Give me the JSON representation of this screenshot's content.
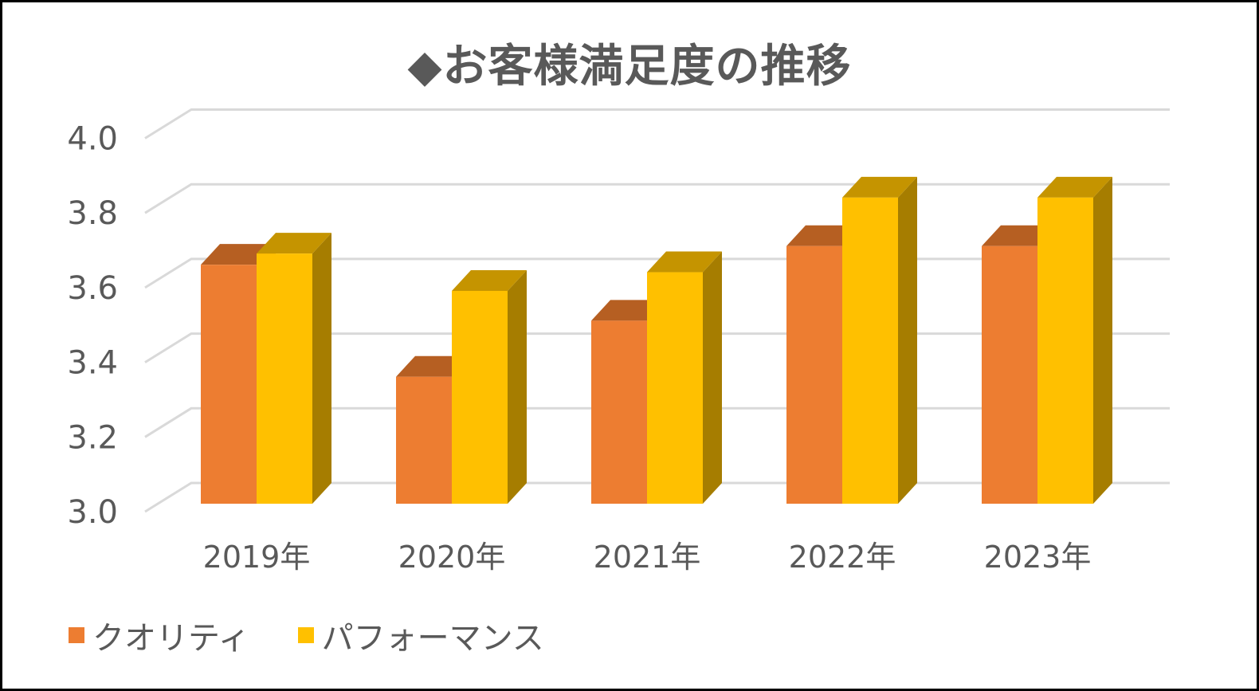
{
  "chart_data": {
    "type": "bar",
    "style": "3d-clustered-column",
    "title": "◆お客様満足度の推移",
    "xlabel": "",
    "ylabel": "",
    "categories": [
      "2019年",
      "2020年",
      "2021年",
      "2022年",
      "2023年"
    ],
    "series": [
      {
        "name": "クオリティ",
        "color": "#ED7D31",
        "values": [
          3.64,
          3.34,
          3.49,
          3.69,
          3.69
        ]
      },
      {
        "name": "パフォーマンス",
        "color": "#FFC000",
        "values": [
          3.67,
          3.57,
          3.62,
          3.82,
          3.82
        ]
      }
    ],
    "ylim": [
      3.0,
      4.0
    ],
    "yticks": [
      "3.0",
      "3.2",
      "3.4",
      "3.6",
      "3.8",
      "4.0"
    ],
    "grid": true,
    "legend_position": "bottom-left"
  },
  "colors": {
    "quality_front": "#ED7D31",
    "quality_top": "#B65F22",
    "quality_side": "#A0521C",
    "performance_front": "#FFC000",
    "performance_top": "#C59400",
    "performance_side": "#A67D00",
    "grid": "#D9D9D9",
    "text": "#595959"
  }
}
